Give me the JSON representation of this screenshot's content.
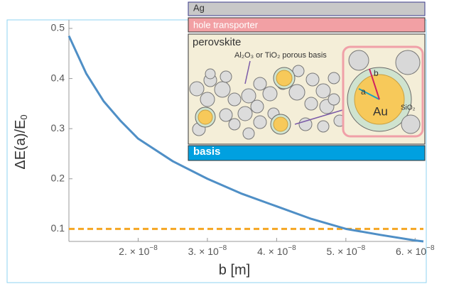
{
  "chart_data": {
    "type": "line",
    "x_label": "b [m]",
    "y_label": "ΔE(a)/E",
    "y_label_sub": "0",
    "x": [
      1e-08,
      1.25e-08,
      1.5e-08,
      1.75e-08,
      2e-08,
      2.5e-08,
      3e-08,
      3.5e-08,
      4e-08,
      4.5e-08,
      5e-08,
      5.5e-08,
      6e-08,
      6.12e-08
    ],
    "series": [
      {
        "color": "#4f8fc6",
        "values": [
          0.485,
          0.41,
          0.355,
          0.315,
          0.28,
          0.235,
          0.2,
          0.17,
          0.145,
          0.12,
          0.1,
          0.088,
          0.077,
          0.075
        ]
      }
    ],
    "reference_line": {
      "value": 0.1,
      "color": "#f5a623"
    },
    "xlim": [
      1e-08,
      6.12e-08
    ],
    "ylim": [
      0.075,
      0.517
    ],
    "xticks": [
      {
        "value": 2e-08,
        "label": "2. × 10",
        "exponent": "−8"
      },
      {
        "value": 3e-08,
        "label": "3. × 10",
        "exponent": "−8"
      },
      {
        "value": 4e-08,
        "label": "4. × 10",
        "exponent": "−8"
      },
      {
        "value": 5e-08,
        "label": "5. × 10",
        "exponent": "−8"
      },
      {
        "value": 6e-08,
        "label": "6. × 10",
        "exponent": "−8"
      }
    ],
    "yticks": [
      0.1,
      0.2,
      0.3,
      0.4,
      0.5
    ]
  },
  "inset": {
    "ag": "Ag",
    "hole": "hole transporter",
    "perovskite": "perovskite",
    "porous": "Al₂O₃ or TiO₂ porous basis",
    "a": "a",
    "b": "b",
    "au": "Au",
    "sio2": "SiO₂",
    "basis": "basis"
  }
}
